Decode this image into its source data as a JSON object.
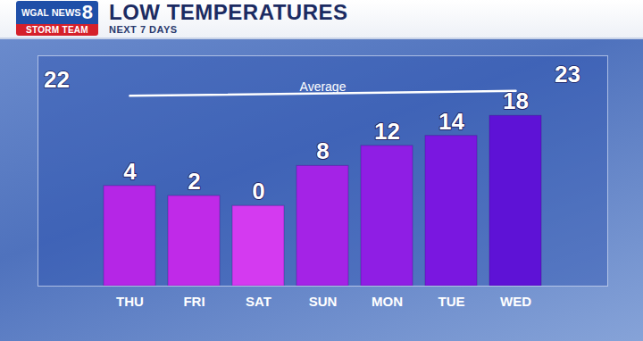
{
  "chart_data": {
    "type": "bar",
    "title": "LOW TEMPERATURES",
    "subtitle": "NEXT 7 DAYS",
    "brand": {
      "station": "WGAL",
      "name": "NEWS",
      "number": "8",
      "team": "STORM TEAM"
    },
    "categories": [
      "THU",
      "FRI",
      "SAT",
      "SUN",
      "MON",
      "TUE",
      "WED"
    ],
    "values": [
      4,
      2,
      0,
      8,
      12,
      14,
      18
    ],
    "colors": [
      "#b526e6",
      "#c02ae8",
      "#d43af0",
      "#a423e6",
      "#8f1ee4",
      "#7a17e0",
      "#5e12d6"
    ],
    "ylim": [
      -16,
      30
    ],
    "yticks": [],
    "grid": false,
    "data_labels": true,
    "tick_labels": "x",
    "average": {
      "label": "Average",
      "values": [
        22,
        23
      ]
    }
  }
}
